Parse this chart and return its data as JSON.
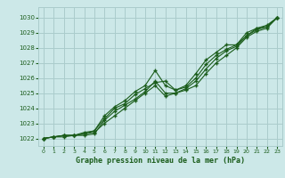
{
  "bg_color": "#cce8e8",
  "grid_color": "#aacccc",
  "line_color": "#1a5c1a",
  "xlabel": "Graphe pression niveau de la mer (hPa)",
  "xlim": [
    -0.5,
    23.5
  ],
  "ylim": [
    1021.5,
    1030.7
  ],
  "yticks": [
    1022,
    1023,
    1024,
    1025,
    1026,
    1027,
    1028,
    1029,
    1030
  ],
  "xticks": [
    0,
    1,
    2,
    3,
    4,
    5,
    6,
    7,
    8,
    9,
    10,
    11,
    12,
    13,
    14,
    15,
    16,
    17,
    18,
    19,
    20,
    21,
    22,
    23
  ],
  "series": [
    [
      1022.0,
      1022.1,
      1022.1,
      1022.2,
      1022.2,
      1022.3,
      1023.2,
      1023.8,
      1024.2,
      1024.6,
      1025.1,
      1025.8,
      1025.0,
      1025.0,
      1025.2,
      1025.5,
      1026.3,
      1027.0,
      1027.5,
      1028.0,
      1028.7,
      1029.1,
      1029.3,
      1030.0
    ],
    [
      1022.0,
      1022.1,
      1022.2,
      1022.2,
      1022.3,
      1022.4,
      1023.0,
      1023.5,
      1024.0,
      1024.5,
      1025.0,
      1025.5,
      1024.8,
      1025.0,
      1025.3,
      1025.8,
      1026.6,
      1027.3,
      1027.8,
      1028.1,
      1028.8,
      1029.2,
      1029.4,
      1030.0
    ],
    [
      1022.0,
      1022.1,
      1022.2,
      1022.2,
      1022.3,
      1022.5,
      1023.3,
      1024.0,
      1024.3,
      1024.9,
      1025.3,
      1025.7,
      1025.8,
      1025.2,
      1025.4,
      1026.0,
      1026.9,
      1027.5,
      1027.9,
      1028.2,
      1029.0,
      1029.3,
      1029.4,
      1030.0
    ],
    [
      1022.0,
      1022.1,
      1022.2,
      1022.2,
      1022.4,
      1022.5,
      1023.5,
      1024.1,
      1024.5,
      1025.1,
      1025.5,
      1026.5,
      1025.5,
      1025.2,
      1025.5,
      1026.3,
      1027.2,
      1027.7,
      1028.2,
      1028.2,
      1028.8,
      1029.3,
      1029.5,
      1030.0
    ]
  ]
}
